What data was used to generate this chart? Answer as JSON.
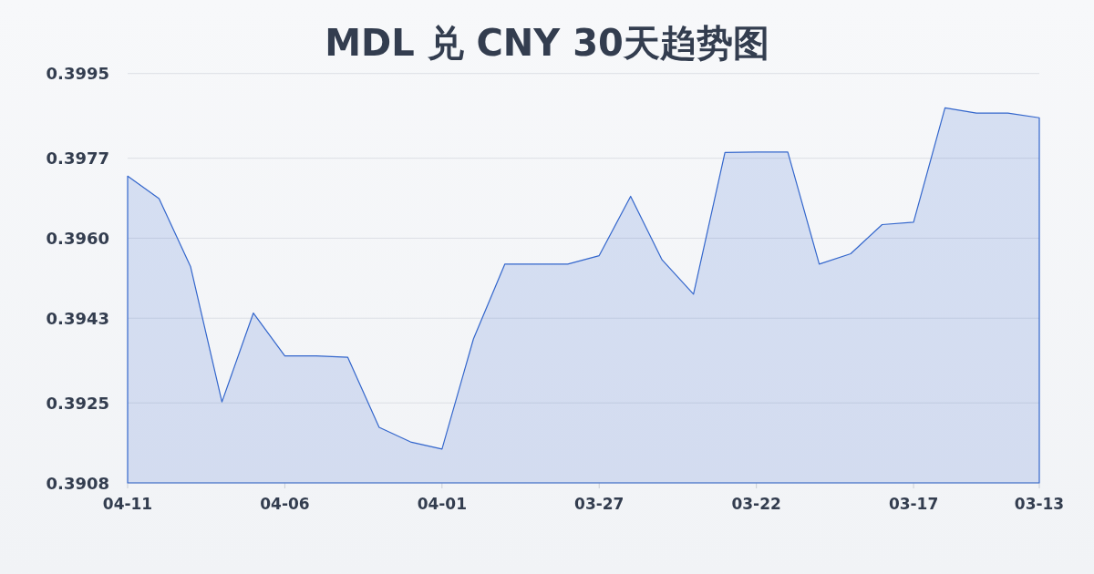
{
  "chart_data": {
    "type": "area",
    "title": "MDL 兑 CNY 30天趋势图",
    "x": [
      "--04-11",
      "--04-10",
      "--04-09",
      "--04-08",
      "--04-07",
      "--04-06",
      "--04-05",
      "--04-04",
      "--04-03",
      "--04-02",
      "--04-01",
      "--03-31",
      "--03-30",
      "--03-29",
      "--03-28",
      "--03-27",
      "--03-26",
      "--03-25",
      "--03-24",
      "--03-23",
      "--03-22",
      "--03-21",
      "--03-20",
      "--03-19",
      "--03-18",
      "--03-17",
      "--03-16",
      "--03-15",
      "--03-14",
      "--03-13"
    ],
    "series": [
      {
        "color": "#3366cc",
        "values": [
          0.39732,
          0.39684,
          0.3954,
          0.39252,
          0.39441,
          0.3935,
          0.3935,
          0.39347,
          0.39198,
          0.39167,
          0.39152,
          0.39386,
          0.39545,
          0.39545,
          0.39545,
          0.39563,
          0.39689,
          0.39554,
          0.39481,
          0.39782,
          0.39783,
          0.39783,
          0.39545,
          0.39567,
          0.39629,
          0.39634,
          0.39877,
          0.39866,
          0.39866,
          0.39856
        ]
      }
    ],
    "xlim": [
      "--04-11",
      "--03-13"
    ],
    "xticks": [
      {
        "value": "--04-11",
        "label": "04-11"
      },
      {
        "value": "--04-06",
        "label": "04-06"
      },
      {
        "value": "--04-01",
        "label": "04-01"
      },
      {
        "value": "--03-27",
        "label": "03-27"
      },
      {
        "value": "--03-22",
        "label": "03-22"
      },
      {
        "value": "--03-17",
        "label": "03-17"
      },
      {
        "value": "--03-13",
        "label": "03-13"
      }
    ],
    "ylim": [
      0.3908,
      0.3995
    ],
    "yticks": [
      0.3908,
      0.3925,
      0.3943,
      {
        "value": 0.396,
        "label": "0.3960"
      },
      0.3977,
      0.3995
    ],
    "grid": "y"
  }
}
